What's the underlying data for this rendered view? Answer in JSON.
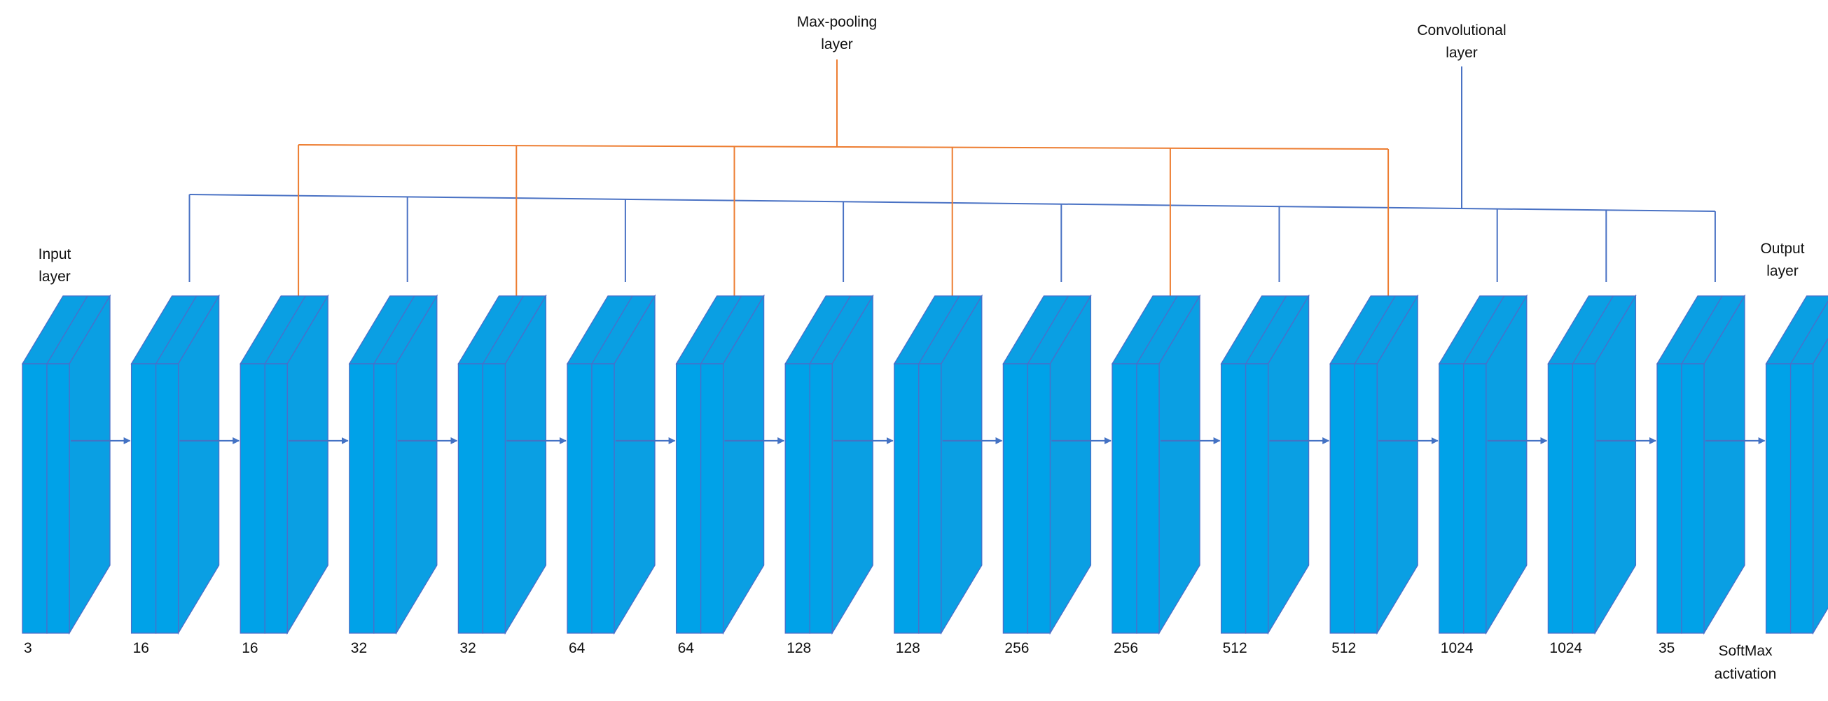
{
  "diagram": {
    "top_labels": {
      "maxpool": [
        "Max-pooling",
        "layer"
      ],
      "conv": [
        "Convolutional",
        "layer"
      ]
    },
    "side_labels": {
      "input": [
        "Input",
        "layer"
      ],
      "output": [
        "Output",
        "layer"
      ]
    },
    "softmax": [
      "SoftMax",
      "activation"
    ],
    "blocks": [
      {
        "value": "3",
        "type": "input"
      },
      {
        "value": "16",
        "type": "conv"
      },
      {
        "value": "16",
        "type": "maxpool"
      },
      {
        "value": "32",
        "type": "conv"
      },
      {
        "value": "32",
        "type": "maxpool"
      },
      {
        "value": "64",
        "type": "conv"
      },
      {
        "value": "64",
        "type": "maxpool"
      },
      {
        "value": "128",
        "type": "conv"
      },
      {
        "value": "128",
        "type": "maxpool"
      },
      {
        "value": "256",
        "type": "conv"
      },
      {
        "value": "256",
        "type": "maxpool"
      },
      {
        "value": "512",
        "type": "conv"
      },
      {
        "value": "512",
        "type": "maxpool"
      },
      {
        "value": "1024",
        "type": "conv"
      },
      {
        "value": "1024",
        "type": "conv"
      },
      {
        "value": "35",
        "type": "conv"
      },
      {
        "value": "",
        "type": "output"
      }
    ],
    "colors": {
      "block_face": "#00a2e8",
      "block_side": "#0a9fe3",
      "block_edge": "#4a6fc9",
      "conv_line": "#4a72c4",
      "maxpool_line": "#ed7d31",
      "arrow": "#4472c4"
    }
  }
}
